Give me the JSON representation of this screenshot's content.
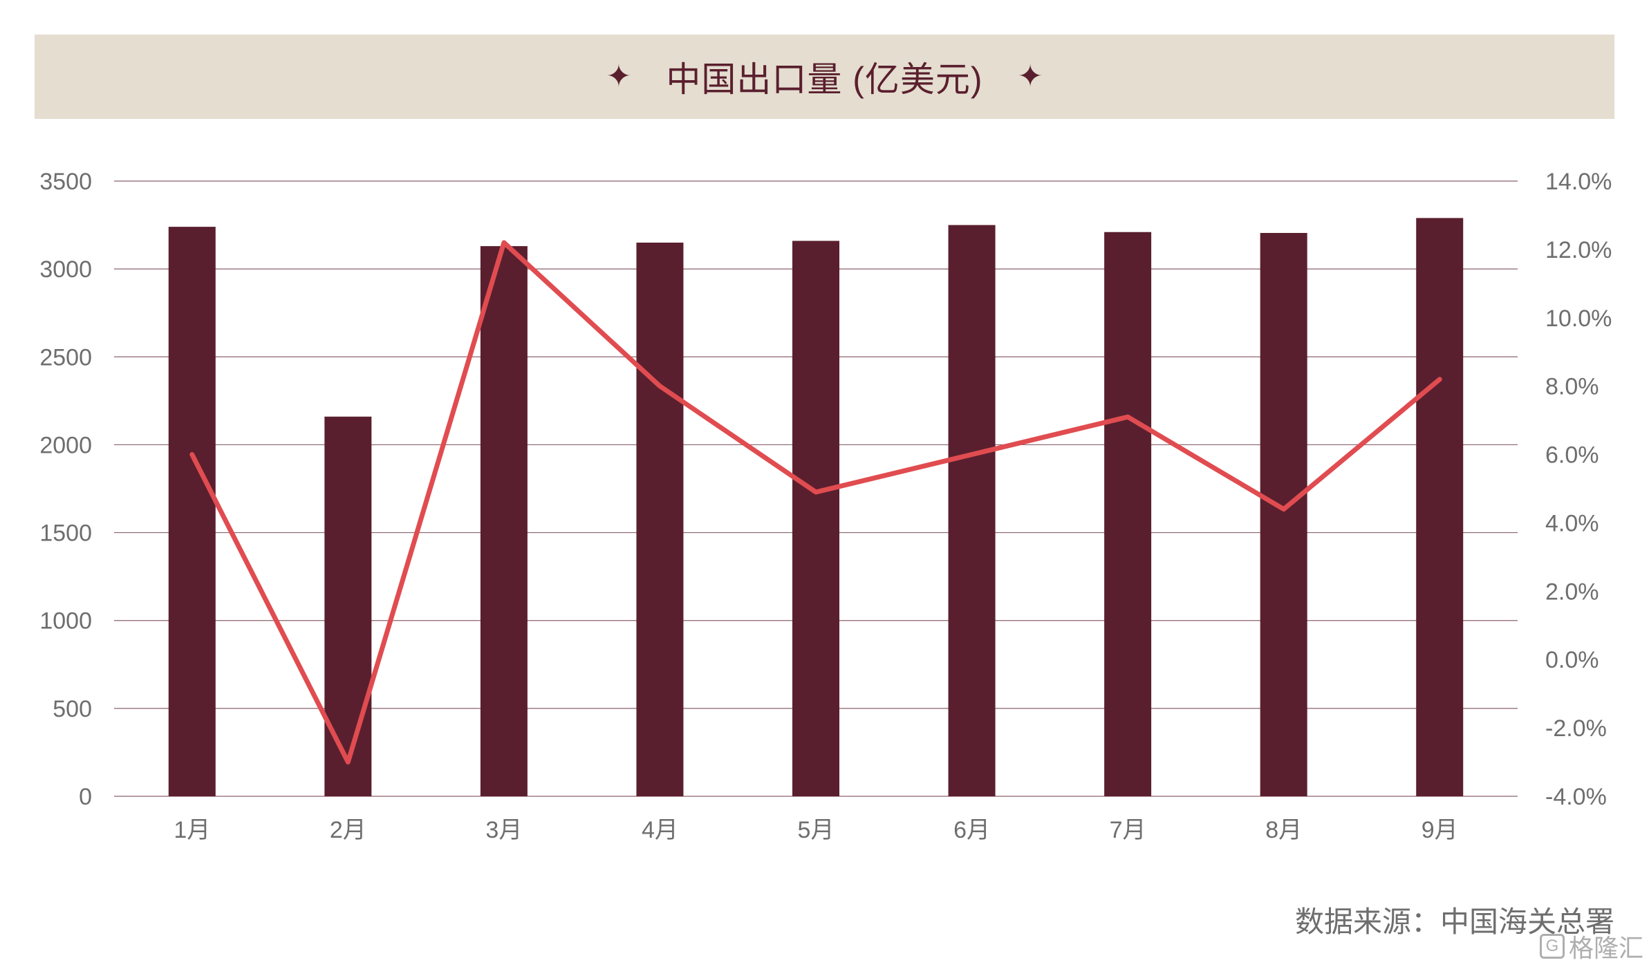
{
  "header": {
    "title": "中国出口量 (亿美元)",
    "star_left": "✦",
    "star_right": "✦"
  },
  "source": "数据来源：中国海关总署",
  "watermark": {
    "icon": "gelonghui-logo-icon",
    "text": "格隆汇"
  },
  "colors": {
    "bar": "#5a1f2e",
    "line": "#e04c50",
    "banner": "#e4ddd0",
    "grid": "#5a1f2e"
  },
  "chart_data": {
    "type": "bar",
    "categories": [
      "1月",
      "2月",
      "3月",
      "4月",
      "5月",
      "6月",
      "7月",
      "8月",
      "9月"
    ],
    "series": [
      {
        "type": "bar",
        "axis": "left",
        "values": [
          3240,
          2160,
          3130,
          3150,
          3160,
          3250,
          3210,
          3205,
          3290
        ]
      },
      {
        "type": "line",
        "axis": "right",
        "values": [
          6.0,
          -3.0,
          12.2,
          8.0,
          4.9,
          6.0,
          7.1,
          4.4,
          8.2
        ]
      }
    ],
    "y_left": {
      "min": 0,
      "max": 3500,
      "ticks": [
        "0",
        "500",
        "1000",
        "1500",
        "2000",
        "2500",
        "3000",
        "3500"
      ]
    },
    "y_right": {
      "min": -4,
      "max": 14,
      "ticks": [
        "-4.0%",
        "-2.0%",
        "0.0%",
        "2.0%",
        "4.0%",
        "6.0%",
        "8.0%",
        "10.0%",
        "12.0%",
        "14.0%"
      ]
    },
    "grid": true,
    "legend": "none"
  }
}
